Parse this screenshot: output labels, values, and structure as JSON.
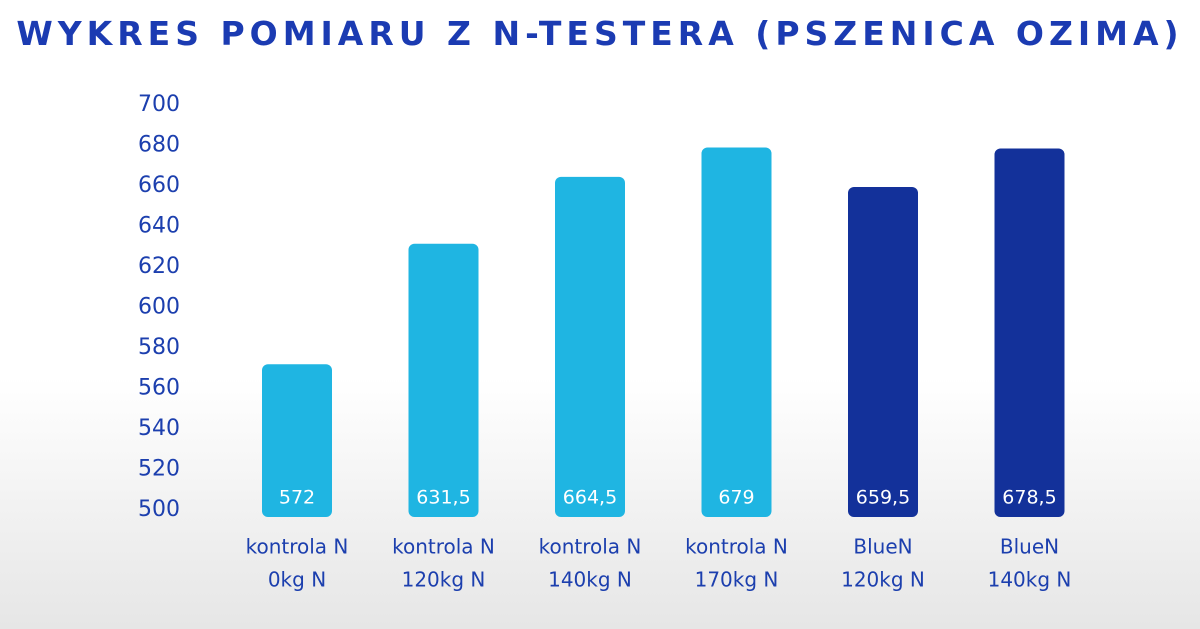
{
  "chart_data": {
    "type": "bar",
    "title": "WYKRES POMIARU Z N-TESTERA (PSZENICA OZIMA)",
    "xlabel": "",
    "ylabel": "",
    "ylim": [
      500,
      700
    ],
    "yticks": [
      "700",
      "680",
      "660",
      "640",
      "620",
      "600",
      "580",
      "560",
      "540",
      "520",
      "500"
    ],
    "grid": false,
    "categories": [
      [
        "kontrola N",
        "0kg N"
      ],
      [
        "kontrola N",
        "120kg N"
      ],
      [
        "kontrola N",
        "140kg N"
      ],
      [
        "kontrola N",
        "170kg N"
      ],
      [
        "BlueN",
        "120kg N"
      ],
      [
        "BlueN",
        "140kg N"
      ]
    ],
    "values": [
      572,
      631.5,
      664.5,
      679,
      659.5,
      678.5
    ],
    "value_labels": [
      "572",
      "631,5",
      "664,5",
      "679",
      "659,5",
      "678,5"
    ],
    "bar_colors": [
      "#1fb5e2",
      "#1fb5e2",
      "#1fb5e2",
      "#1fb5e2",
      "#13319a",
      "#13319a"
    ]
  }
}
